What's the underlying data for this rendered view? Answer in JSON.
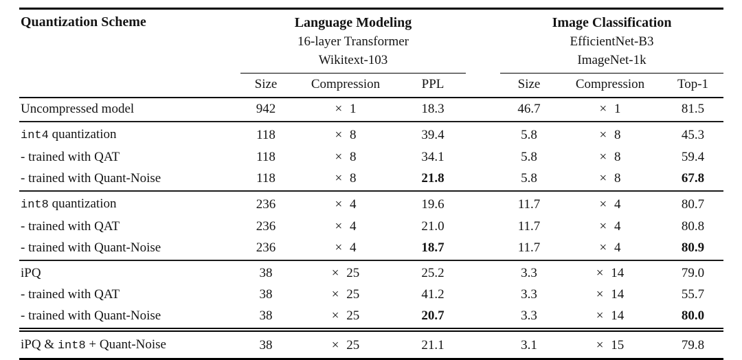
{
  "page": {
    "background": "#ffffff",
    "text_color": "#141414"
  },
  "table": {
    "scheme_header": "Quantization Scheme",
    "groups": [
      {
        "title": "Language Modeling",
        "subtitle1": "16-layer Transformer",
        "subtitle2": "Wikitext-103",
        "columns": [
          "Size",
          "Compression",
          "PPL"
        ]
      },
      {
        "title": "Image Classification",
        "subtitle1": "EfficientNet-B3",
        "subtitle2": "ImageNet-1k",
        "columns": [
          "Size",
          "Compression",
          "Top-1"
        ]
      }
    ],
    "sections": [
      {
        "name": "uncompressed",
        "rows": [
          {
            "label_parts": [
              {
                "text": "Uncompressed model",
                "mono": false
              }
            ],
            "cells": [
              {
                "v": "942"
              },
              {
                "v": "× 1"
              },
              {
                "v": "18.3"
              },
              {
                "v": "46.7"
              },
              {
                "v": "× 1"
              },
              {
                "v": "81.5"
              }
            ]
          }
        ]
      },
      {
        "name": "int4",
        "rows": [
          {
            "label_parts": [
              {
                "text": "int4",
                "mono": true
              },
              {
                "text": " quantization",
                "mono": false
              }
            ],
            "cells": [
              {
                "v": "118"
              },
              {
                "v": "× 8"
              },
              {
                "v": "39.4"
              },
              {
                "v": "5.8"
              },
              {
                "v": "× 8"
              },
              {
                "v": "45.3"
              }
            ]
          },
          {
            "label_parts": [
              {
                "text": "- trained with QAT",
                "mono": false
              }
            ],
            "cells": [
              {
                "v": "118"
              },
              {
                "v": "× 8"
              },
              {
                "v": "34.1"
              },
              {
                "v": "5.8"
              },
              {
                "v": "× 8"
              },
              {
                "v": "59.4"
              }
            ]
          },
          {
            "label_parts": [
              {
                "text": "- trained with Quant-Noise",
                "mono": false
              }
            ],
            "cells": [
              {
                "v": "118"
              },
              {
                "v": "× 8"
              },
              {
                "v": "21.8",
                "bold": true
              },
              {
                "v": "5.8"
              },
              {
                "v": "× 8"
              },
              {
                "v": "67.8",
                "bold": true
              }
            ]
          }
        ]
      },
      {
        "name": "int8",
        "rows": [
          {
            "label_parts": [
              {
                "text": "int8",
                "mono": true
              },
              {
                "text": " quantization",
                "mono": false
              }
            ],
            "cells": [
              {
                "v": "236"
              },
              {
                "v": "× 4"
              },
              {
                "v": "19.6"
              },
              {
                "v": "11.7"
              },
              {
                "v": "× 4"
              },
              {
                "v": "80.7"
              }
            ]
          },
          {
            "label_parts": [
              {
                "text": "- trained with QAT",
                "mono": false
              }
            ],
            "cells": [
              {
                "v": "236"
              },
              {
                "v": "× 4"
              },
              {
                "v": "21.0"
              },
              {
                "v": "11.7"
              },
              {
                "v": "× 4"
              },
              {
                "v": "80.8"
              }
            ]
          },
          {
            "label_parts": [
              {
                "text": "- trained with Quant-Noise",
                "mono": false
              }
            ],
            "cells": [
              {
                "v": "236"
              },
              {
                "v": "× 4"
              },
              {
                "v": "18.7",
                "bold": true
              },
              {
                "v": "11.7"
              },
              {
                "v": "× 4"
              },
              {
                "v": "80.9",
                "bold": true
              }
            ]
          }
        ]
      },
      {
        "name": "ipq",
        "rows": [
          {
            "label_parts": [
              {
                "text": "iPQ",
                "mono": false
              }
            ],
            "cells": [
              {
                "v": "38"
              },
              {
                "v": "× 25"
              },
              {
                "v": "25.2"
              },
              {
                "v": "3.3"
              },
              {
                "v": "× 14"
              },
              {
                "v": "79.0"
              }
            ]
          },
          {
            "label_parts": [
              {
                "text": "- trained with QAT",
                "mono": false
              }
            ],
            "cells": [
              {
                "v": "38"
              },
              {
                "v": "× 25"
              },
              {
                "v": "41.2"
              },
              {
                "v": "3.3"
              },
              {
                "v": "× 14"
              },
              {
                "v": "55.7"
              }
            ]
          },
          {
            "label_parts": [
              {
                "text": "- trained with Quant-Noise",
                "mono": false
              }
            ],
            "cells": [
              {
                "v": "38"
              },
              {
                "v": "× 25"
              },
              {
                "v": "20.7",
                "bold": true
              },
              {
                "v": "3.3"
              },
              {
                "v": "× 14"
              },
              {
                "v": "80.0",
                "bold": true
              }
            ]
          }
        ]
      },
      {
        "name": "combined",
        "double_rule_above": true,
        "rows": [
          {
            "label_parts": [
              {
                "text": "iPQ & ",
                "mono": false
              },
              {
                "text": "int8",
                "mono": true
              },
              {
                "text": " + Quant-Noise",
                "mono": false
              }
            ],
            "cells": [
              {
                "v": "38"
              },
              {
                "v": "× 25"
              },
              {
                "v": "21.1"
              },
              {
                "v": "3.1"
              },
              {
                "v": "× 15"
              },
              {
                "v": "79.8"
              }
            ]
          }
        ]
      }
    ],
    "cell_names": [
      "lm-size",
      "lm-compression",
      "lm-ppl",
      "ic-size",
      "ic-compression",
      "ic-top1"
    ]
  }
}
